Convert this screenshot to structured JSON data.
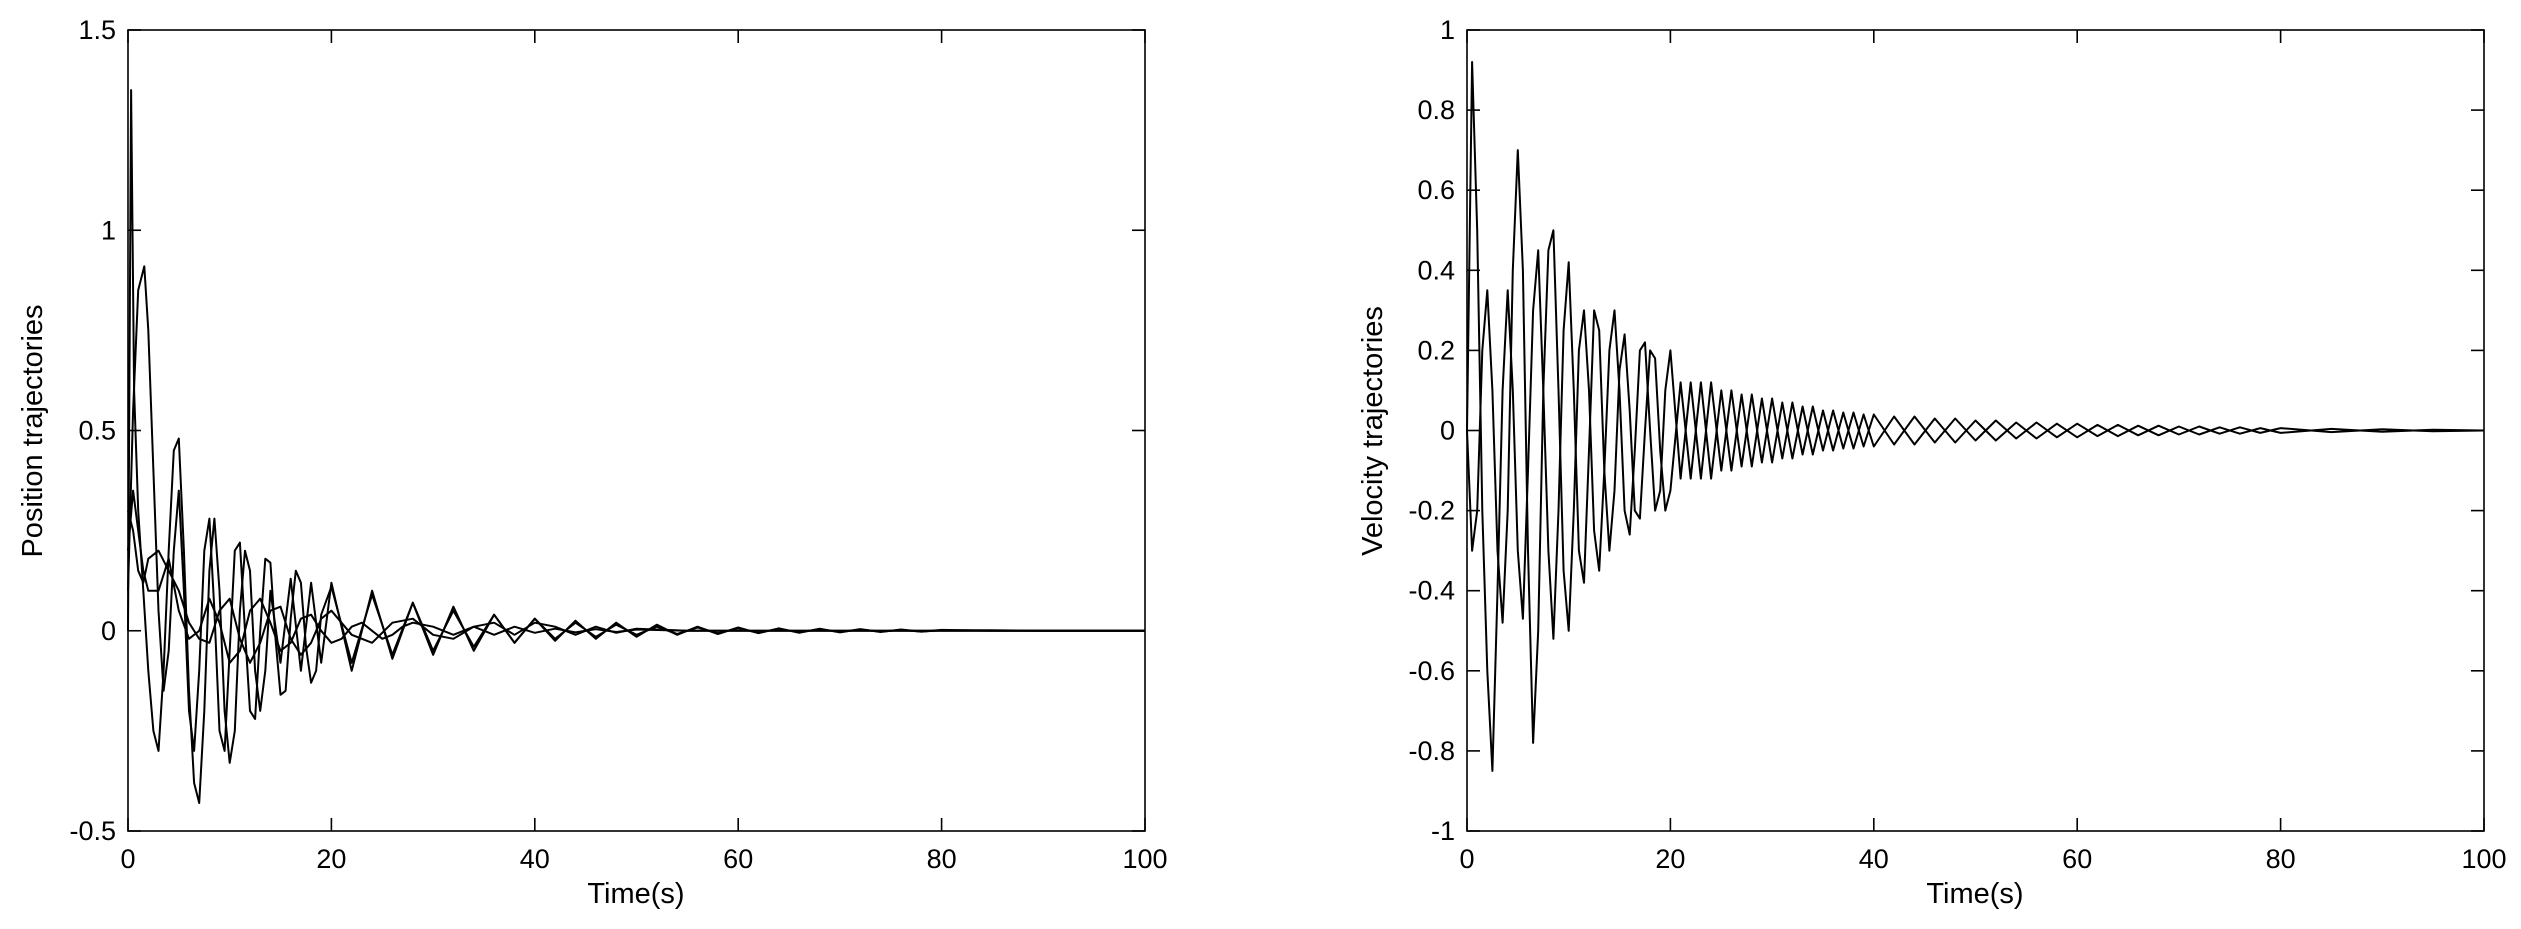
{
  "chart_data": [
    {
      "type": "line",
      "title": "",
      "xlabel": "Time(s)",
      "ylabel": "Position trajectories",
      "xlim": [
        0,
        100
      ],
      "ylim": [
        -0.5,
        1.5
      ],
      "xticks": [
        "0",
        "20",
        "40",
        "60",
        "80",
        "100"
      ],
      "yticks": [
        "-0.5",
        "0",
        "0.5",
        "1",
        "1.5"
      ],
      "xtick_values": [
        0,
        20,
        40,
        60,
        80,
        100
      ],
      "ytick_values": [
        -0.5,
        0,
        0.5,
        1,
        1.5
      ],
      "grid": false,
      "line_color": "#000000",
      "series": [
        {
          "x": [
            0,
            0.5,
            1,
            1.6,
            2,
            2.5,
            3,
            3.5,
            4,
            4.5,
            5,
            5.5,
            6,
            6.5,
            7,
            7.5,
            8,
            8.5,
            9,
            9.5,
            10,
            10.5,
            11,
            11.5,
            12,
            12.5,
            13,
            13.5,
            14,
            14.5,
            15,
            15.5,
            16,
            16.5,
            17,
            17.5,
            18,
            18.5,
            19,
            20,
            22,
            24,
            26,
            28,
            30,
            32,
            34,
            36,
            38,
            40,
            42,
            44,
            46,
            48,
            50,
            52,
            54,
            56,
            58,
            60,
            62,
            64,
            66,
            68,
            70,
            72,
            74,
            76,
            78,
            80,
            85,
            90,
            95,
            100
          ],
          "y": [
            0.1,
            0.55,
            0.85,
            0.91,
            0.75,
            0.4,
            0.05,
            -0.15,
            -0.05,
            0.2,
            0.35,
            0.1,
            -0.2,
            -0.3,
            -0.1,
            0.2,
            0.28,
            0.05,
            -0.25,
            -0.3,
            -0.05,
            0.2,
            0.22,
            0,
            -0.2,
            -0.22,
            0,
            0.18,
            0.17,
            -0.02,
            -0.16,
            -0.15,
            0.03,
            0.15,
            0.12,
            -0.04,
            -0.13,
            -0.1,
            0.04,
            0.11,
            -0.08,
            0.09,
            -0.06,
            0.07,
            -0.05,
            0.05,
            -0.04,
            0.04,
            -0.03,
            0.03,
            -0.02,
            0.02,
            -0.015,
            0.015,
            -0.01,
            0.01,
            -0.008,
            0.008,
            -0.006,
            0.006,
            -0.005,
            0.005,
            -0.004,
            0.004,
            -0.003,
            0.003,
            -0.002,
            0.002,
            -0.002,
            0.001,
            0.001,
            0,
            0,
            0
          ]
        },
        {
          "x": [
            0,
            0.3,
            0.6,
            1,
            1.5,
            2,
            2.5,
            3,
            3.5,
            4,
            4.5,
            5,
            5.5,
            6,
            6.5,
            7,
            7.5,
            8,
            8.5,
            9,
            9.5,
            10,
            10.5,
            11,
            11.5,
            12,
            12.5,
            13,
            13.5,
            14,
            15,
            16,
            17,
            18,
            19,
            20,
            22,
            24,
            26,
            28,
            30,
            32,
            34,
            36,
            38,
            40,
            42,
            44,
            46,
            48,
            50,
            52,
            54,
            56,
            58,
            60,
            62,
            64,
            66,
            68,
            70,
            72,
            74,
            76,
            78,
            80,
            85,
            90,
            95,
            100
          ],
          "y": [
            0,
            1.35,
            0.6,
            0.3,
            0.1,
            -0.1,
            -0.25,
            -0.3,
            -0.1,
            0.2,
            0.45,
            0.48,
            0.2,
            -0.15,
            -0.38,
            -0.43,
            -0.2,
            0.15,
            0.28,
            0.1,
            -0.2,
            -0.33,
            -0.25,
            0.05,
            0.2,
            0.15,
            -0.1,
            -0.2,
            -0.1,
            0.1,
            -0.08,
            0.13,
            -0.1,
            0.12,
            -0.08,
            0.12,
            -0.1,
            0.1,
            -0.07,
            0.07,
            -0.06,
            0.06,
            -0.05,
            0.04,
            -0.03,
            0.03,
            -0.025,
            0.025,
            -0.02,
            0.02,
            -0.015,
            0.015,
            -0.01,
            0.01,
            -0.008,
            0.008,
            -0.006,
            0.006,
            -0.005,
            0.005,
            -0.004,
            0.004,
            -0.003,
            0.003,
            -0.002,
            0.002,
            0,
            0,
            0,
            0
          ]
        },
        {
          "x": [
            0,
            0.5,
            1,
            1.5,
            2,
            3,
            4,
            5,
            6,
            7,
            8,
            9,
            10,
            11,
            12,
            13,
            14,
            15,
            16,
            17,
            18,
            19,
            20,
            21,
            22,
            23,
            24,
            25,
            26,
            27,
            28,
            30,
            32,
            34,
            36,
            38,
            40,
            42,
            44,
            46,
            48,
            50,
            55,
            60,
            65,
            70,
            75,
            80,
            90,
            100
          ],
          "y": [
            0.2,
            0.35,
            0.25,
            0.15,
            0.1,
            0.1,
            0.18,
            0.05,
            -0.02,
            0,
            0.08,
            0.02,
            -0.08,
            -0.05,
            0.05,
            0.08,
            0.02,
            -0.05,
            -0.03,
            0.03,
            0.04,
            0,
            -0.03,
            -0.02,
            0.01,
            0.02,
            0,
            -0.02,
            -0.01,
            0.01,
            0.02,
            0.01,
            -0.01,
            0.01,
            -0.01,
            0.01,
            -0.005,
            0.005,
            -0.004,
            0.004,
            -0.003,
            0.003,
            0,
            0,
            0,
            0,
            0,
            0,
            0,
            0
          ]
        },
        {
          "x": [
            0,
            0.5,
            1,
            1.5,
            2,
            3,
            4,
            5,
            6,
            7,
            8,
            9,
            10,
            11,
            12,
            13,
            14,
            15,
            16,
            17,
            18,
            19,
            20,
            22,
            24,
            26,
            28,
            30,
            32,
            34,
            36,
            38,
            40,
            42,
            44,
            46,
            48,
            50,
            55,
            60,
            65,
            70,
            75,
            80,
            90,
            100
          ],
          "y": [
            0.3,
            0.25,
            0.15,
            0.12,
            0.18,
            0.2,
            0.15,
            0.1,
            0.02,
            -0.02,
            -0.03,
            0.05,
            0.08,
            -0.02,
            -0.08,
            -0.03,
            0.05,
            0.06,
            -0.02,
            -0.06,
            -0.03,
            0.03,
            0.05,
            -0.01,
            -0.03,
            0.02,
            0.03,
            -0.01,
            -0.02,
            0.01,
            0.02,
            -0.01,
            0.02,
            0.01,
            -0.01,
            0.01,
            -0.005,
            0.005,
            0,
            0,
            0,
            0,
            0,
            0,
            0,
            0
          ]
        }
      ]
    },
    {
      "type": "line",
      "title": "",
      "xlabel": "Time(s)",
      "ylabel": "Velocity trajectories",
      "xlim": [
        0,
        100
      ],
      "ylim": [
        -1,
        1
      ],
      "xticks": [
        "0",
        "20",
        "40",
        "60",
        "80",
        "100"
      ],
      "yticks": [
        "-1",
        "-0.8",
        "-0.6",
        "-0.4",
        "-0.2",
        "0",
        "0.2",
        "0.4",
        "0.6",
        "0.8",
        "1"
      ],
      "xtick_values": [
        0,
        20,
        40,
        60,
        80,
        100
      ],
      "ytick_values": [
        -1,
        -0.8,
        -0.6,
        -0.4,
        -0.2,
        0,
        0.2,
        0.4,
        0.6,
        0.8,
        1
      ],
      "grid": false,
      "line_color": "#000000",
      "series": [
        {
          "x": [
            0,
            0.5,
            1,
            1.5,
            2,
            2.5,
            3,
            3.5,
            4,
            4.5,
            5,
            5.5,
            6,
            6.5,
            7,
            7.5,
            8,
            8.5,
            9,
            9.5,
            10,
            10.5,
            11,
            11.5,
            12,
            12.5,
            13,
            13.5,
            14,
            14.5,
            15,
            15.5,
            16,
            16.5,
            17,
            17.5,
            18,
            18.5,
            19,
            19.5,
            20,
            21,
            22,
            23,
            24,
            25,
            26,
            27,
            28,
            29,
            30,
            31,
            32,
            33,
            34,
            35,
            36,
            37,
            38,
            39,
            40,
            42,
            44,
            46,
            48,
            50,
            52,
            54,
            56,
            58,
            60,
            62,
            64,
            66,
            68,
            70,
            72,
            74,
            76,
            78,
            80,
            85,
            90,
            95,
            100
          ],
          "y": [
            0,
            0.92,
            0.5,
            -0.2,
            -0.6,
            -0.85,
            -0.4,
            0.1,
            0.35,
            0.1,
            -0.3,
            -0.47,
            -0.1,
            0.3,
            0.45,
            0.1,
            -0.3,
            -0.52,
            -0.2,
            0.25,
            0.42,
            0.1,
            -0.3,
            -0.38,
            -0.05,
            0.3,
            0.25,
            -0.1,
            -0.3,
            -0.15,
            0.15,
            0.24,
            0.05,
            -0.2,
            -0.22,
            0,
            0.2,
            0.18,
            -0.05,
            -0.2,
            -0.15,
            0.12,
            -0.12,
            0.12,
            -0.12,
            0.1,
            -0.1,
            0.09,
            -0.09,
            0.08,
            -0.08,
            0.07,
            -0.07,
            0.06,
            -0.06,
            0.05,
            -0.05,
            0.045,
            -0.045,
            0.04,
            -0.04,
            0.035,
            -0.035,
            0.03,
            -0.03,
            0.025,
            -0.025,
            0.02,
            -0.02,
            0.017,
            -0.017,
            0.014,
            -0.014,
            0.012,
            -0.012,
            0.01,
            -0.01,
            0.008,
            -0.008,
            0.006,
            -0.006,
            0.004,
            -0.003,
            0.002,
            0
          ]
        },
        {
          "x": [
            0,
            0.5,
            1,
            1.5,
            2,
            2.5,
            3,
            3.5,
            4,
            4.5,
            5,
            5.5,
            6,
            6.5,
            7,
            7.5,
            8,
            8.5,
            9,
            9.5,
            10,
            10.5,
            11,
            11.5,
            12,
            12.5,
            13,
            13.5,
            14,
            14.5,
            15,
            15.5,
            16,
            16.5,
            17,
            17.5,
            18,
            18.5,
            19,
            19.5,
            20,
            21,
            22,
            23,
            24,
            25,
            26,
            27,
            28,
            29,
            30,
            31,
            32,
            33,
            34,
            35,
            36,
            37,
            38,
            39,
            40,
            42,
            44,
            46,
            48,
            50,
            52,
            54,
            56,
            58,
            60,
            62,
            64,
            66,
            68,
            70,
            72,
            74,
            76,
            78,
            80,
            85,
            90,
            95,
            100
          ],
          "y": [
            0,
            -0.3,
            -0.2,
            0.2,
            0.35,
            0.1,
            -0.3,
            -0.48,
            -0.2,
            0.4,
            0.7,
            0.4,
            -0.3,
            -0.78,
            -0.5,
            0.1,
            0.45,
            0.5,
            0.1,
            -0.35,
            -0.5,
            -0.2,
            0.2,
            0.3,
            0.1,
            -0.25,
            -0.35,
            -0.1,
            0.2,
            0.3,
            0.1,
            -0.2,
            -0.26,
            -0.05,
            0.2,
            0.22,
            0,
            -0.2,
            -0.15,
            0.1,
            0.2,
            -0.12,
            0.12,
            -0.12,
            0.12,
            -0.1,
            0.1,
            -0.09,
            0.09,
            -0.08,
            0.08,
            -0.07,
            0.07,
            -0.06,
            0.06,
            -0.05,
            0.05,
            -0.045,
            0.045,
            -0.04,
            0.04,
            -0.035,
            0.035,
            -0.03,
            0.03,
            -0.025,
            0.025,
            -0.02,
            0.02,
            -0.017,
            0.017,
            -0.014,
            0.014,
            -0.012,
            0.012,
            -0.01,
            0.01,
            -0.008,
            0.008,
            -0.006,
            0.006,
            -0.004,
            0.003,
            -0.002,
            0
          ]
        }
      ]
    }
  ]
}
